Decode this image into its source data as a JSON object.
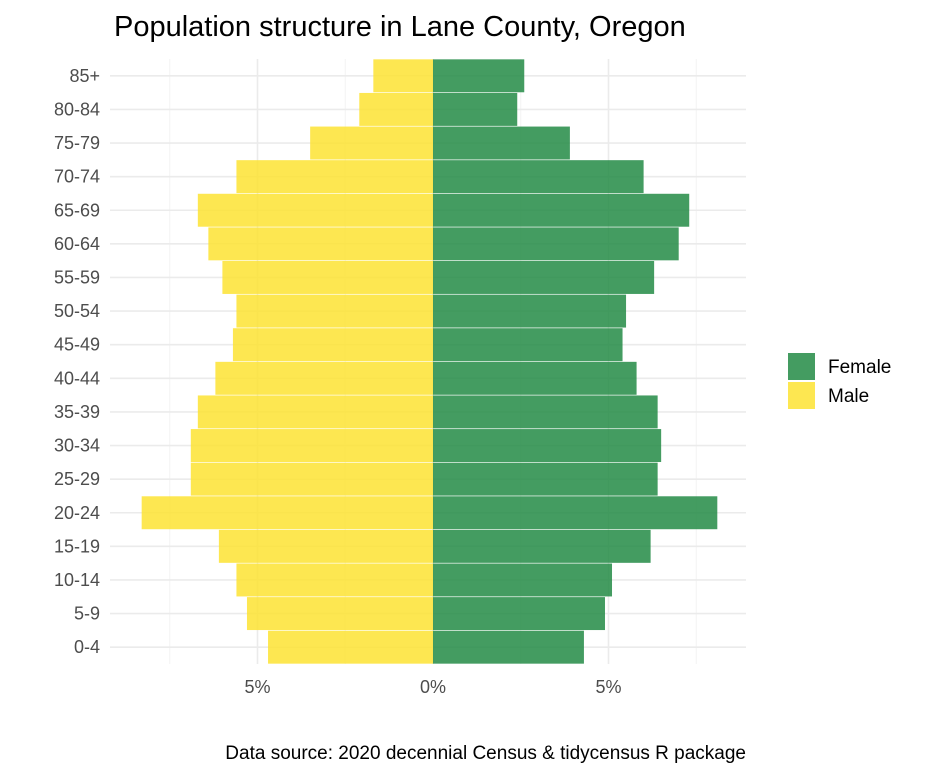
{
  "chart_data": {
    "type": "bar",
    "orientation": "horizontal",
    "title": "Population structure in Lane County, Oregon",
    "caption": "Data source: 2020 decennial Census & tidycensus R package",
    "categories": [
      "0-4",
      "5-9",
      "10-14",
      "15-19",
      "20-24",
      "25-29",
      "30-34",
      "35-39",
      "40-44",
      "45-49",
      "50-54",
      "55-59",
      "60-64",
      "65-69",
      "70-74",
      "75-79",
      "80-84",
      "85+"
    ],
    "series": [
      {
        "name": "Female",
        "color": "#238B45",
        "values": [
          4.3,
          4.9,
          5.1,
          6.2,
          8.1,
          6.4,
          6.5,
          6.4,
          5.8,
          5.4,
          5.5,
          6.3,
          7.0,
          7.3,
          6.0,
          3.9,
          2.4,
          2.6
        ]
      },
      {
        "name": "Male",
        "color": "#FDE333",
        "values": [
          -4.7,
          -5.3,
          -5.6,
          -6.1,
          -8.3,
          -6.9,
          -6.9,
          -6.7,
          -6.2,
          -5.7,
          -5.6,
          -6.0,
          -6.4,
          -6.7,
          -5.6,
          -3.5,
          -2.1,
          -1.7
        ]
      }
    ],
    "x_ticks": [
      {
        "value": -5,
        "label": "5%"
      },
      {
        "value": 0,
        "label": "0%"
      },
      {
        "value": 5,
        "label": "5%"
      }
    ],
    "xlim": [
      -9.2,
      8.9
    ],
    "grid": true,
    "legend_position": "right"
  }
}
